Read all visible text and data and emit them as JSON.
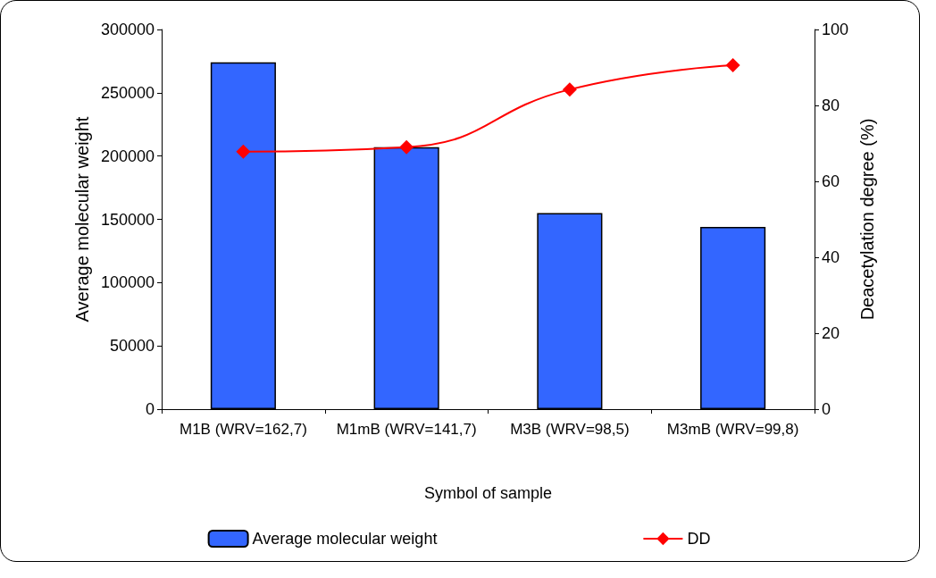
{
  "chart_data": {
    "type": "bar",
    "xlabel": "Symbol of sample",
    "ylabel": "Average molecular weight",
    "y2label": "Deacetylation degree (%)",
    "categories": [
      "M1B (WRV=162,7)",
      "M1mB (WRV=141,7)",
      "M3B (WRV=98,5)",
      "M3mB (WRV=99,8)"
    ],
    "series": [
      {
        "name": "Average molecular weight",
        "color": "#3366ff",
        "values": [
          274000,
          207000,
          155000,
          144000
        ]
      },
      {
        "name": "DD",
        "type": "line",
        "axis": "y2",
        "color": "#ff0000",
        "marker": "diamond",
        "values": [
          67.8,
          69,
          84.2,
          90.6
        ]
      }
    ],
    "ylim": [
      0,
      300000
    ],
    "yticks": [
      0,
      50000,
      100000,
      150000,
      200000,
      250000,
      300000
    ],
    "y2lim": [
      0,
      100
    ],
    "y2ticks": [
      0,
      20,
      40,
      60,
      80,
      100
    ],
    "grid": false,
    "legend": "bottom"
  }
}
